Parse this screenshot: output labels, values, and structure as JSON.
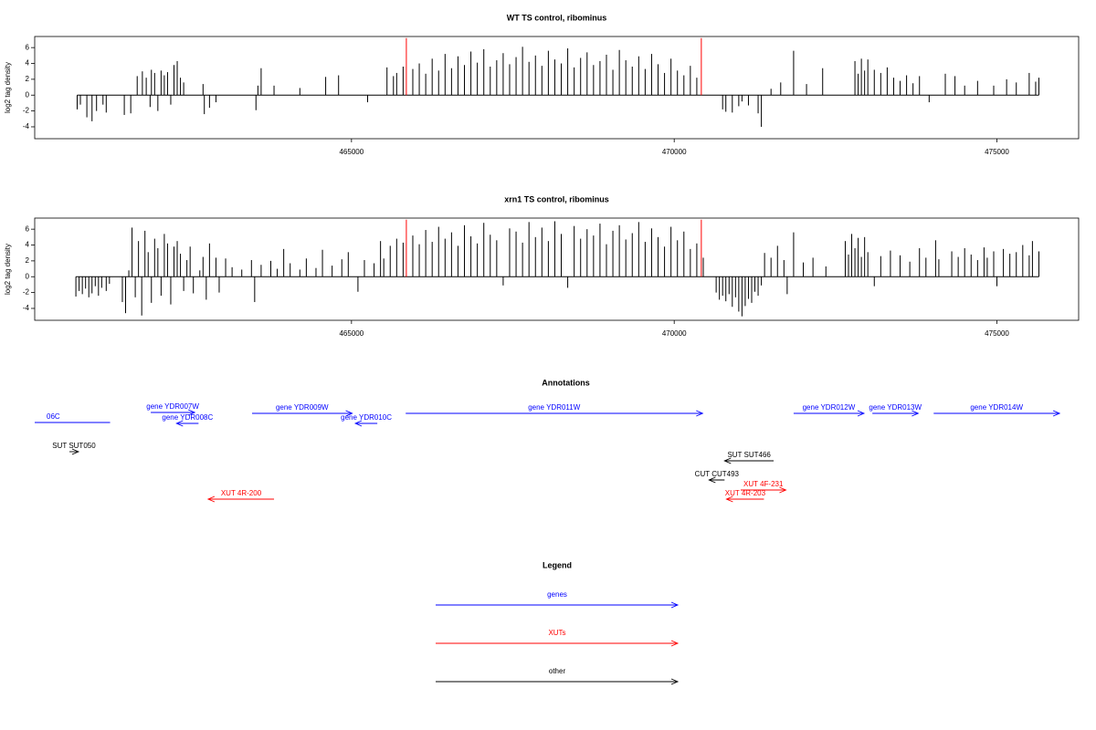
{
  "chart_data": [
    {
      "type": "track",
      "title": "WT TS control, ribominus",
      "ylabel": "log2 tag density",
      "xlim": [
        460092,
        476266
      ],
      "ylim": [
        -5.5,
        7.4
      ],
      "xticks": [
        465000,
        470000,
        475000
      ],
      "yticks": [
        -4,
        -2,
        0,
        2,
        4,
        6
      ],
      "series": [
        {
          "color": "#000000",
          "x": [
            460750,
            460800,
            460900,
            460980,
            461050,
            461150,
            461200,
            461480,
            461580,
            461680,
            461760,
            461820,
            461880,
            461900,
            461950,
            462000,
            462050,
            462100,
            462150,
            462200,
            462250,
            462300,
            462350,
            462400,
            462700,
            462720,
            462800,
            462900,
            463520,
            463550,
            463600,
            463800,
            464200,
            464600,
            464800,
            465250,
            465550,
            465650,
            465700,
            465800,
            465950,
            466050,
            466150,
            466250,
            466350,
            466450,
            466550,
            466650,
            466750,
            466850,
            466950,
            467050,
            467150,
            467250,
            467350,
            467450,
            467550,
            467650,
            467750,
            467850,
            467950,
            468050,
            468150,
            468250,
            468350,
            468450,
            468550,
            468650,
            468750,
            468850,
            468950,
            469050,
            469150,
            469250,
            469350,
            469450,
            469550,
            469650,
            469750,
            469850,
            469950,
            470050,
            470150,
            470250,
            470350,
            470750,
            470800,
            470900,
            471000,
            471050,
            471150,
            471300,
            471350,
            471500,
            471650,
            471850,
            472050,
            472300,
            472800,
            472850,
            472900,
            472950,
            473000,
            473100,
            473200,
            473300,
            473400,
            473500,
            473600,
            473700,
            473800,
            473950,
            474200,
            474350,
            474500,
            474700,
            474950,
            475150,
            475300,
            475500,
            475600,
            475650
          ],
          "values": [
            -1.8,
            -1.2,
            -2.8,
            -3.3,
            -2,
            -1.2,
            -2.2,
            -2.5,
            -2.3,
            2.4,
            3,
            2.2,
            -1.5,
            3.2,
            2.8,
            -2,
            3.1,
            2.5,
            2.9,
            -1.2,
            3.8,
            4.3,
            2.2,
            1.6,
            1.4,
            -2.4,
            -1.6,
            -0.9,
            -1.9,
            1.2,
            3.4,
            1.2,
            0.9,
            2.3,
            2.5,
            -0.9,
            3.5,
            2.4,
            2.8,
            3.6,
            3.3,
            4,
            2.7,
            4.6,
            3.1,
            5.2,
            3.4,
            4.9,
            3.8,
            5.5,
            4.1,
            5.8,
            3.6,
            4.4,
            5.3,
            3.9,
            4.8,
            6.1,
            4.2,
            5,
            3.7,
            5.6,
            4.5,
            4,
            5.9,
            3.5,
            4.7,
            5.4,
            3.8,
            4.3,
            5.1,
            3.2,
            5.7,
            4.4,
            3.6,
            4.9,
            3.3,
            5.2,
            3.9,
            2.8,
            4.6,
            3.1,
            2.5,
            3.7,
            2.2,
            -1.8,
            -2.1,
            -2.2,
            -1.4,
            -0.8,
            -1.3,
            -2.3,
            -4,
            0.8,
            1.6,
            5.6,
            1.4,
            3.4,
            4.3,
            2.7,
            4.6,
            3.1,
            4.5,
            3.2,
            2.8,
            3.5,
            2.2,
            1.8,
            2.5,
            1.5,
            2.4,
            -0.9,
            2.7,
            2.4,
            1.2,
            1.8,
            1.2,
            2,
            1.6,
            2.8,
            1.7,
            2.2
          ]
        },
        {
          "color": "#ff0000",
          "x": [
            465850,
            470420
          ],
          "values": [
            7.2,
            7.2
          ]
        }
      ]
    },
    {
      "type": "track",
      "title": "xrn1 TS control, ribominus",
      "ylabel": "log2 tag density",
      "xlim": [
        460092,
        476266
      ],
      "ylim": [
        -5.5,
        7.4
      ],
      "xticks": [
        465000,
        470000,
        475000
      ],
      "yticks": [
        -4,
        -2,
        0,
        2,
        4,
        6
      ],
      "series": [
        {
          "color": "#000000",
          "x": [
            460730,
            460780,
            460830,
            460880,
            460930,
            460980,
            461030,
            461080,
            461130,
            461200,
            461250,
            461450,
            461500,
            461550,
            461600,
            461650,
            461700,
            461750,
            461800,
            461850,
            461900,
            461950,
            462000,
            462050,
            462100,
            462150,
            462200,
            462250,
            462300,
            462350,
            462400,
            462450,
            462500,
            462550,
            462650,
            462700,
            462750,
            462800,
            462900,
            462950,
            463050,
            463150,
            463300,
            463450,
            463500,
            463600,
            463750,
            463850,
            463950,
            464050,
            464200,
            464300,
            464450,
            464550,
            464700,
            464850,
            464950,
            465100,
            465200,
            465350,
            465450,
            465500,
            465600,
            465700,
            465800,
            465950,
            466050,
            466150,
            466250,
            466350,
            466450,
            466550,
            466650,
            466750,
            466850,
            466950,
            467050,
            467150,
            467250,
            467350,
            467450,
            467550,
            467650,
            467750,
            467850,
            467950,
            468050,
            468150,
            468250,
            468350,
            468450,
            468550,
            468650,
            468750,
            468850,
            468950,
            469050,
            469150,
            469250,
            469350,
            469450,
            469550,
            469650,
            469750,
            469850,
            469950,
            470050,
            470150,
            470250,
            470350,
            470450,
            470650,
            470700,
            470750,
            470800,
            470850,
            470900,
            470950,
            471000,
            471050,
            471100,
            471150,
            471200,
            471250,
            471300,
            471350,
            471400,
            471500,
            471600,
            471700,
            471750,
            471850,
            472000,
            472150,
            472350,
            472650,
            472700,
            472750,
            472800,
            472850,
            472900,
            472950,
            473000,
            473100,
            473200,
            473350,
            473500,
            473650,
            473800,
            473900,
            474050,
            474100,
            474300,
            474400,
            474500,
            474600,
            474700,
            474800,
            474850,
            474950,
            475000,
            475100,
            475200,
            475300,
            475400,
            475500,
            475550,
            475650
          ],
          "values": [
            -2.5,
            -1.8,
            -2.2,
            -1.5,
            -2.6,
            -2.1,
            -1.2,
            -2.4,
            -1.4,
            -1.8,
            -0.9,
            -3.2,
            -4.6,
            0.8,
            6.2,
            -2.6,
            4.5,
            -4.9,
            5.8,
            3.1,
            -3.3,
            4.8,
            3.6,
            -2.4,
            5.4,
            4.2,
            -3.5,
            3.8,
            4.5,
            2.9,
            -1.8,
            2.1,
            3.8,
            -2.1,
            0.8,
            2.5,
            -2.9,
            4.2,
            2.4,
            -2,
            2.3,
            1.2,
            0.9,
            2.1,
            -3.2,
            1.5,
            2,
            1,
            3.5,
            1.7,
            0.9,
            2.3,
            1.1,
            3.4,
            1.4,
            2.2,
            3.1,
            -1.9,
            2.1,
            1.7,
            4.5,
            2.3,
            3.9,
            4.8,
            4.3,
            5.2,
            4.1,
            5.9,
            4.4,
            6.3,
            4.8,
            5.6,
            3.9,
            6.5,
            5.1,
            4.2,
            6.8,
            5.3,
            4.6,
            -1.1,
            6.1,
            5.7,
            4.3,
            6.9,
            5,
            6.2,
            4.5,
            7,
            5.4,
            -1.4,
            6.4,
            4.8,
            6,
            5.2,
            6.7,
            4.1,
            5.8,
            6.5,
            4.7,
            5.5,
            6.9,
            4.4,
            6.1,
            5,
            3.8,
            6.3,
            4.6,
            5.7,
            3.5,
            4.2,
            2.4,
            -2,
            -2.9,
            -2.4,
            -3.1,
            -2.2,
            -3.8,
            -2.6,
            -4.4,
            -5,
            -3.7,
            -2.8,
            -3.3,
            -1.9,
            -2.4,
            -1.1,
            3,
            2.4,
            3.9,
            2.1,
            -2.2,
            5.6,
            1.8,
            2.4,
            1.3,
            4.5,
            2.8,
            5.4,
            3.6,
            4.9,
            2.5,
            5,
            3.1,
            -1.2,
            2.6,
            3.3,
            2.7,
            1.9,
            3.6,
            2.4,
            4.6,
            2.2,
            3.2,
            2.5,
            3.6,
            2.8,
            2.1,
            3.7,
            2.4,
            3.2,
            -1.2,
            3.5,
            2.9,
            3.1,
            4,
            2.7,
            4.5,
            3.2
          ]
        },
        {
          "color": "#ff0000",
          "x": [
            465850,
            470420
          ],
          "values": [
            7.2,
            7.2
          ]
        }
      ]
    },
    {
      "type": "annotation",
      "title": "Annotations",
      "xlim": [
        460092,
        476266
      ],
      "features": [
        {
          "label": "06C",
          "start": 461260,
          "end": 459500,
          "color": "#0000ff"
        },
        {
          "label": "gene YDR007W",
          "start": 461890,
          "end": 462570,
          "color": "#0000ff"
        },
        {
          "label": "gene YDR008C",
          "start": 462630,
          "end": 462290,
          "color": "#0000ff"
        },
        {
          "label": "gene YDR009W",
          "start": 463460,
          "end": 465010,
          "color": "#0000ff"
        },
        {
          "label": "gene YDR010C",
          "start": 465400,
          "end": 465060,
          "color": "#0000ff"
        },
        {
          "label": "gene YDR011W",
          "start": 465840,
          "end": 470440,
          "color": "#0000ff"
        },
        {
          "label": "gene YDR012W",
          "start": 471850,
          "end": 472940,
          "color": "#0000ff"
        },
        {
          "label": "gene YDR013W",
          "start": 473070,
          "end": 473780,
          "color": "#0000ff"
        },
        {
          "label": "gene YDR014W",
          "start": 474020,
          "end": 475970,
          "color": "#0000ff"
        },
        {
          "label": "SUT SUT050",
          "start": 460630,
          "end": 460770,
          "color": "#000000"
        },
        {
          "label": "SUT SUT466",
          "start": 471540,
          "end": 470780,
          "color": "#000000"
        },
        {
          "label": "CUT CUT493",
          "start": 470780,
          "end": 470540,
          "color": "#000000"
        },
        {
          "label": "XUT 4F-231",
          "start": 471030,
          "end": 471730,
          "color": "#ff0000"
        },
        {
          "label": "XUT 4R-203",
          "start": 471390,
          "end": 470810,
          "color": "#ff0000"
        },
        {
          "label": "XUT 4R-200",
          "start": 463800,
          "end": 462780,
          "color": "#ff0000"
        }
      ],
      "legend": {
        "title": "Legend",
        "entries": [
          {
            "name": "genes",
            "color": "#0000ff"
          },
          {
            "name": "XUTs",
            "color": "#ff0000"
          },
          {
            "name": "other",
            "color": "#000000"
          }
        ]
      }
    }
  ]
}
